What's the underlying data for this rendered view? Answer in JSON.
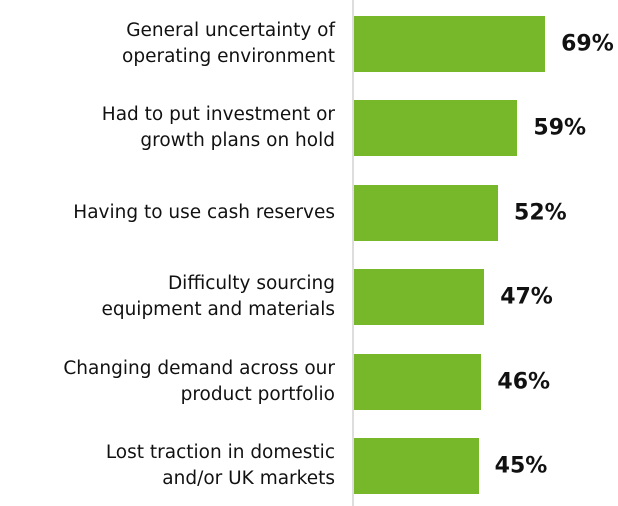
{
  "chart_data": {
    "type": "bar",
    "orientation": "horizontal",
    "categories": [
      "General uncertainty of\noperating environment",
      "Had to put investment or\ngrowth plans on hold",
      "Having to use cash reserves",
      "Difficulty sourcing\nequipment and materials",
      "Changing demand across our\nproduct portfolio",
      "Lost traction in domestic\nand/or UK markets"
    ],
    "values": [
      69,
      59,
      52,
      47,
      46,
      45
    ],
    "value_labels": [
      "69%",
      "59%",
      "52%",
      "47%",
      "46%",
      "45%"
    ],
    "color": "#76b82a"
  }
}
